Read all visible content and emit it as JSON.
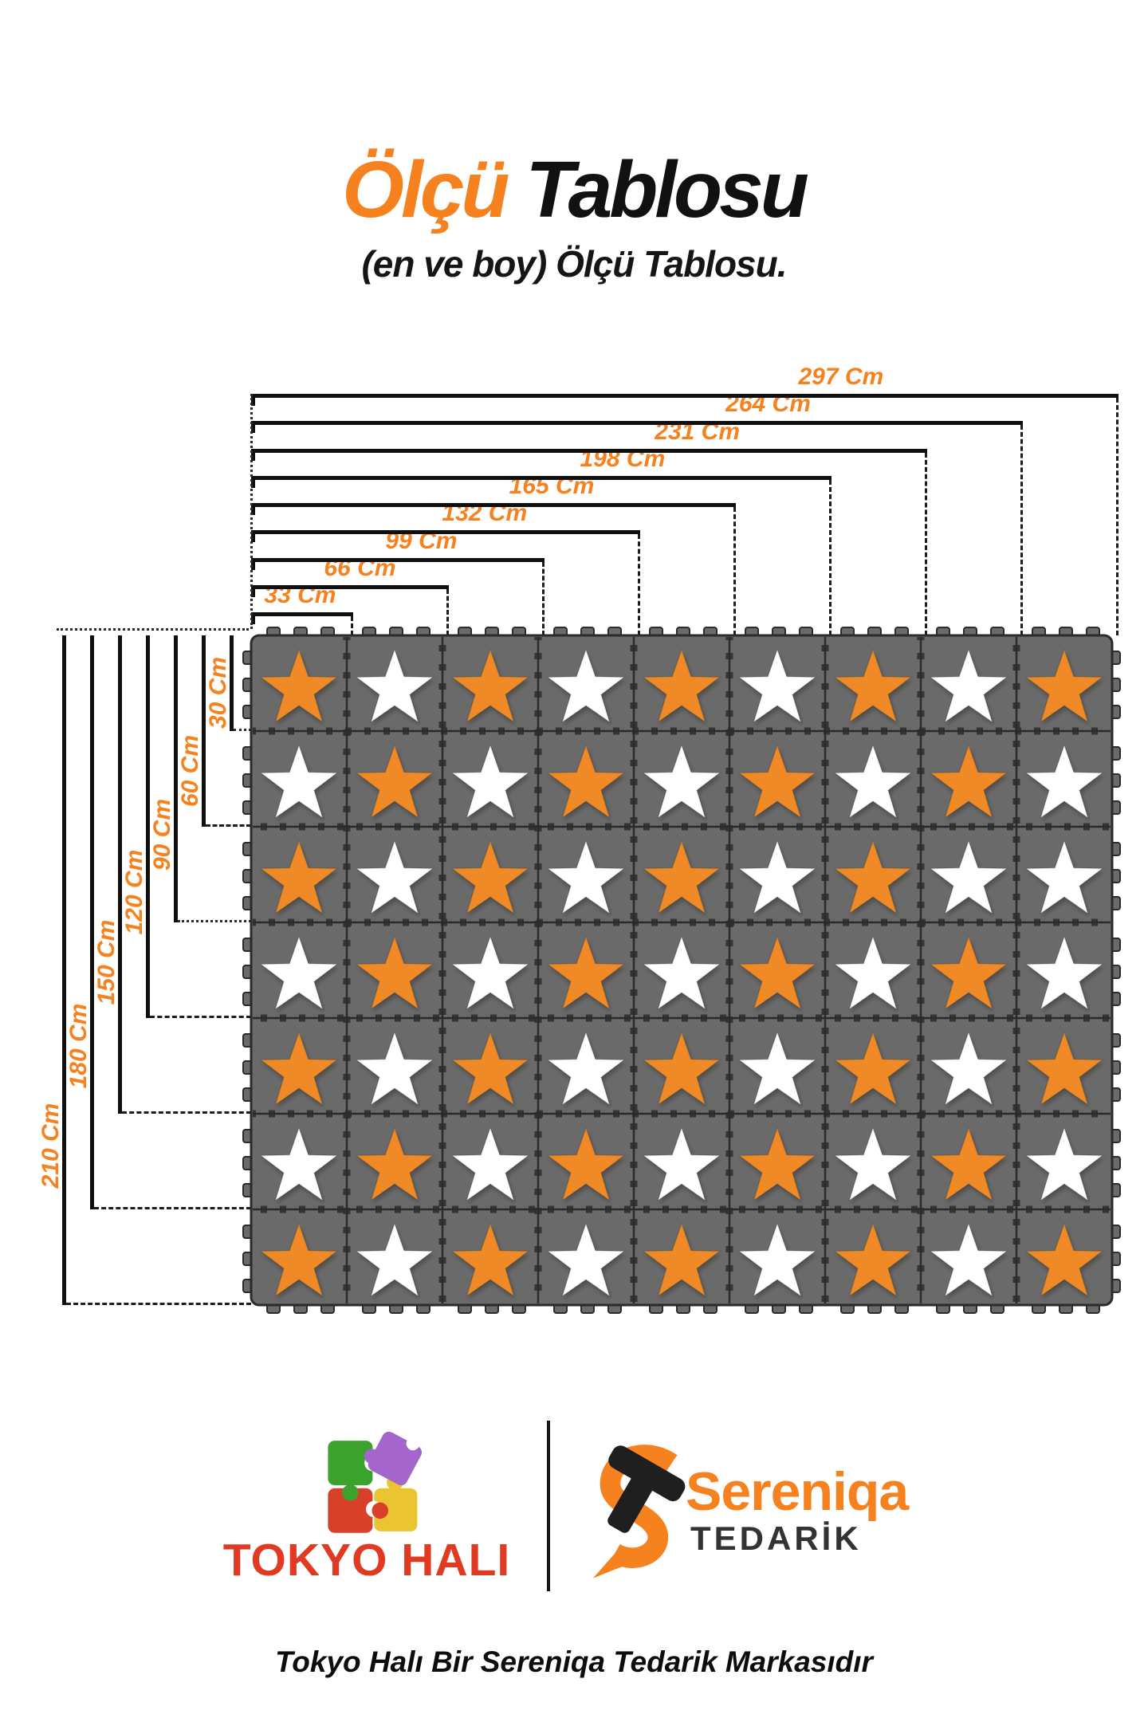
{
  "title": {
    "accent": "Ölçü",
    "rest": " Tablosu",
    "subtitle": "(en ve boy) Ölçü Tablosu."
  },
  "measurements": {
    "unit": "Cm",
    "widths": [
      "33 Cm",
      "66 Cm",
      "99 Cm",
      "132 Cm",
      "165 Cm",
      "198 Cm",
      "231 Cm",
      "264 Cm",
      "297 Cm"
    ],
    "heights": [
      "30 Cm",
      "60 Cm",
      "90 Cm",
      "120 Cm",
      "150 Cm",
      "180 Cm",
      "210 Cm"
    ]
  },
  "mat": {
    "columns": 9,
    "rows": 7,
    "pattern_rows": [
      "OWOWOWOWO",
      "WOWOWOWOW",
      "OWOWOWOWW",
      "WOWOWOWOW",
      "OWOWOWOWO",
      "WOWOWOWOW",
      "OWOWOWOWO"
    ],
    "legend": {
      "O": "orange-star-tile",
      "W": "white-star-tile"
    }
  },
  "colors": {
    "accent_orange": "#F5821F",
    "star_orange": "#EF8A28",
    "tile_gray": "#6A6A6A",
    "tile_outline": "#2B2B2B",
    "line_black": "#0F0F0F",
    "tokyo_red": "#E23A22",
    "logo_green": "#3BA32B",
    "logo_purple": "#A466CB",
    "logo_yellow": "#EAC431",
    "logo_red": "#D8402A",
    "tedarik_dark": "#333333"
  },
  "brand": {
    "tokyo": "TOKYO HALI",
    "sereniqa": "Sereniqa",
    "tedarik": "TEDARİK"
  },
  "footer": "Tokyo Halı Bir Sereniqa Tedarik Markasıdır"
}
